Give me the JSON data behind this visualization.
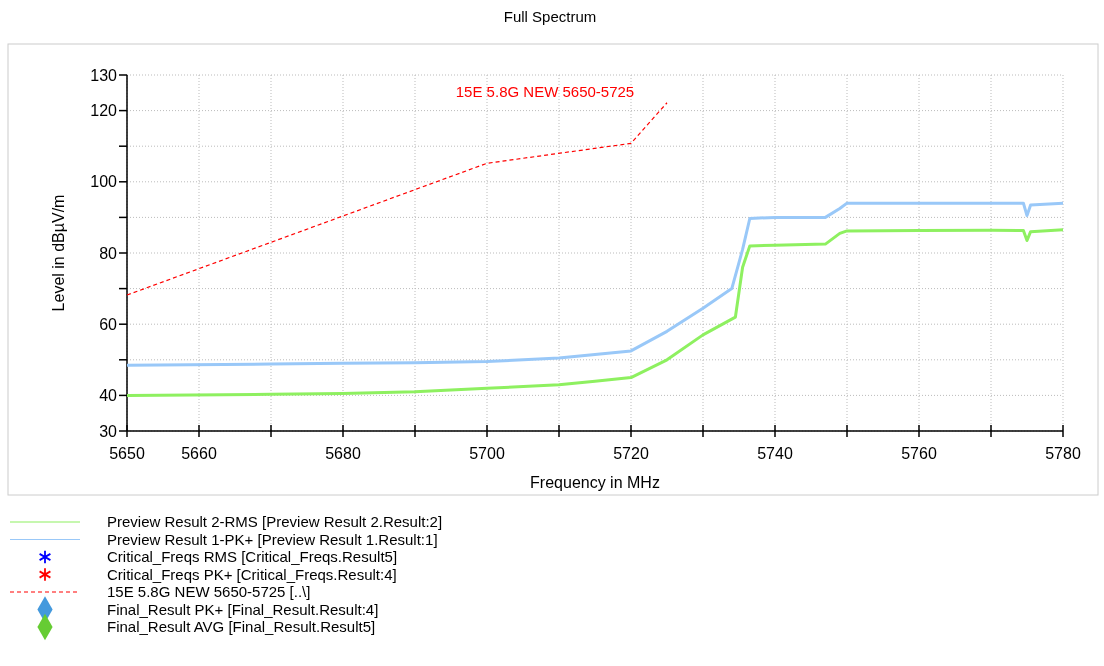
{
  "chart_data": {
    "type": "line",
    "title": "Full Spectrum",
    "xlabel": "Frequency in MHz",
    "ylabel": "Level in dBµV/m",
    "xlim": [
      5650,
      5780
    ],
    "ylim": [
      30,
      130
    ],
    "xticks": [
      5650,
      5660,
      {
        "value": 5670,
        "label": null
      },
      5680,
      {
        "value": 5690,
        "label": null
      },
      5700,
      {
        "value": 5710,
        "label": null
      },
      5720,
      {
        "value": 5730,
        "label": null
      },
      5740,
      {
        "value": 5750,
        "label": null
      },
      5760,
      {
        "value": 5770,
        "label": null
      },
      5780
    ],
    "yticks": [
      30,
      40,
      {
        "value": 50,
        "label": null
      },
      60,
      {
        "value": 70,
        "label": null
      },
      80,
      {
        "value": 90,
        "label": null
      },
      100,
      {
        "value": 110,
        "label": null
      },
      120,
      130
    ],
    "grid": true,
    "legend": "bottom",
    "annotations": [
      "15E 5.8G NEW 5650-5725",
      "Critical_Freqs RMS   [Critical_Freqs.Result5]",
      "Critical_Freqs PK+   [Critical_Freqs.Result:4]",
      "Final_Result PK+   [Final_Result.Result:4]",
      "Final_Result AVG   [Final_Result.Result5]"
    ],
    "series": [
      {
        "name": "Preview Result 2-RMS   [Preview Result 2.Result:2]",
        "color": "#8ef060",
        "line_style": "solid",
        "x": [
          5650,
          5670,
          5680,
          5690,
          5700,
          5710,
          5715,
          5720,
          5725,
          5730,
          5734.5,
          5735.5,
          5736.5,
          5740,
          5747,
          5749,
          5750,
          5760,
          5770,
          5774.5,
          5775,
          5775.5,
          5780
        ],
        "values": [
          40,
          40.3,
          40.5,
          41,
          42,
          43,
          44,
          45,
          50,
          57,
          62,
          76,
          82,
          82.2,
          82.5,
          85.5,
          86.2,
          86.3,
          86.4,
          86.3,
          83.5,
          86,
          86.5
        ]
      },
      {
        "name": "Preview Result 1-PK+   [Preview Result 1.Result:1]",
        "color": "#99c8f8",
        "line_style": "solid",
        "x": [
          5650,
          5670,
          5680,
          5690,
          5700,
          5710,
          5715,
          5720,
          5725,
          5730,
          5734,
          5735.5,
          5736.5,
          5740,
          5747,
          5749,
          5750,
          5760,
          5770,
          5774.5,
          5775,
          5775.5,
          5780
        ],
        "values": [
          48.5,
          48.8,
          49,
          49.2,
          49.5,
          50.5,
          51.5,
          52.5,
          58,
          64.5,
          70,
          81,
          89.7,
          90,
          90,
          92.5,
          94,
          94,
          94,
          94,
          90.5,
          93.5,
          94
        ]
      },
      {
        "name": "15E 5.8G NEW 5650-5725   [..\\]",
        "color": "#ff0000",
        "line_style": "dashed",
        "x": [
          5650,
          5700,
          5720,
          5725
        ],
        "values": [
          68.2,
          105.2,
          110.8,
          122.2
        ]
      }
    ]
  }
}
